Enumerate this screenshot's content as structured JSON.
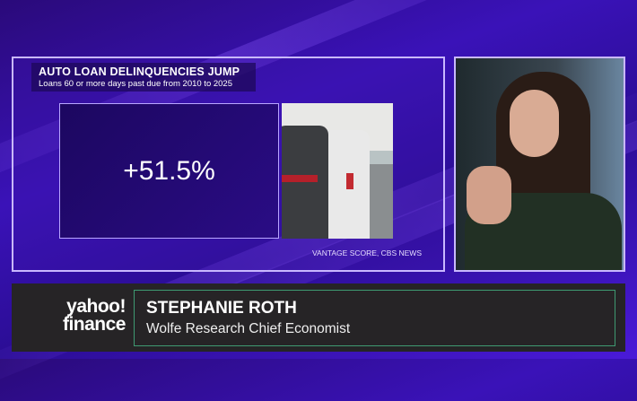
{
  "graphic": {
    "title": "AUTO LOAN DELINQUENCIES JUMP",
    "subtitle": "Loans 60 or more days past due from 2010 to 2025",
    "stat": "+51.5%",
    "source": "VANTAGE SCORE, CBS NEWS"
  },
  "lower_third": {
    "logo_line1": "yahoo!",
    "logo_line2": "finance",
    "name": "STEPHANIE ROTH",
    "role": "Wolfe Research Chief Economist"
  },
  "colors": {
    "frame": "#c9b8ff",
    "accent_border": "#3f9a72",
    "background": "#3a12b8"
  }
}
